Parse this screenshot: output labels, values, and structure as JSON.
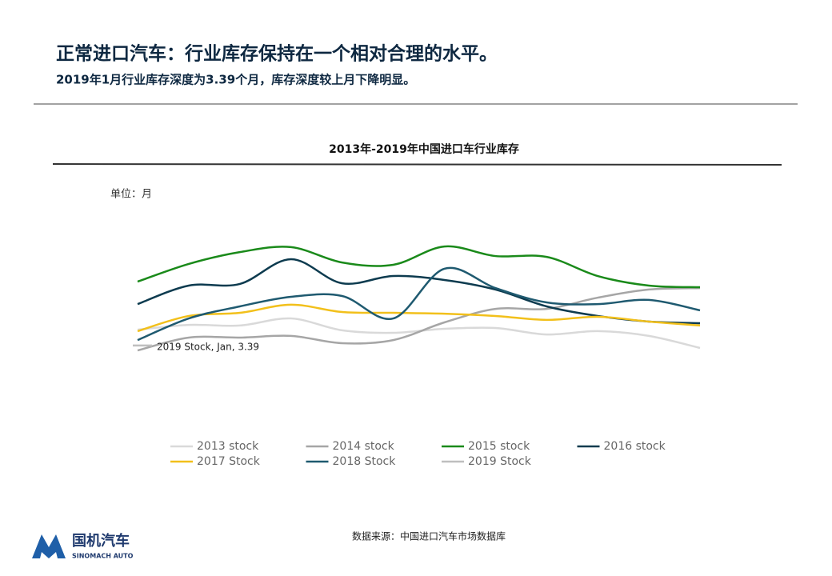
{
  "header": {
    "title": "正常进口汽车：行业库存保持在一个相对合理的水平。",
    "subtitle": "2019年1月行业库存深度为3.39个月，库存深度较上月下降明显。"
  },
  "chart_data": {
    "type": "line",
    "title": "2013年-2019年中国进口车行业库存",
    "unit_label": "单位：月",
    "categories": [
      null,
      null,
      null,
      null,
      null,
      null,
      null,
      null,
      null,
      null,
      null,
      null
    ],
    "ylim": [
      0,
      9
    ],
    "annotation": "2019 Stock, Jan, 3.39",
    "series": [
      {
        "name": "2013 stock",
        "color": "#d9d9d9",
        "values": [
          4.15,
          4.38,
          4.35,
          4.69,
          4.12,
          4.0,
          4.19,
          4.23,
          3.92,
          4.08,
          3.85,
          3.27
        ]
      },
      {
        "name": "2014 stock",
        "color": "#a6a6a6",
        "values": [
          3.15,
          3.77,
          3.77,
          3.85,
          3.5,
          3.65,
          4.5,
          5.15,
          5.15,
          5.69,
          6.08,
          6.15
        ]
      },
      {
        "name": "2015 stock",
        "color": "#1a8a1a",
        "values": [
          6.46,
          7.31,
          7.88,
          8.12,
          7.38,
          7.27,
          8.15,
          7.69,
          7.65,
          6.73,
          6.27,
          6.19
        ]
      },
      {
        "name": "2016 stock",
        "color": "#0d3b4f",
        "values": [
          5.38,
          6.27,
          6.35,
          7.54,
          6.38,
          6.73,
          6.54,
          6.08,
          5.27,
          4.81,
          4.54,
          4.46
        ]
      },
      {
        "name": "2017 Stock",
        "color": "#f2c01b",
        "values": [
          4.08,
          4.81,
          4.96,
          5.35,
          5.0,
          4.96,
          4.92,
          4.81,
          4.62,
          4.77,
          4.54,
          4.35
        ]
      },
      {
        "name": "2018 Stock",
        "color": "#1f5a70",
        "values": [
          3.65,
          4.69,
          5.27,
          5.73,
          5.77,
          4.69,
          7.08,
          6.15,
          5.46,
          5.38,
          5.58,
          5.08
        ]
      },
      {
        "name": "2019 Stock",
        "color": "#bfbfbf",
        "values": [
          3.39,
          null,
          null,
          null,
          null,
          null,
          null,
          null,
          null,
          null,
          null,
          null
        ]
      }
    ]
  },
  "footer": {
    "source": "数据来源：中国进口汽车市场数据库",
    "logo_cn": "国机汽车",
    "logo_en": "SINOMACH AUTO"
  }
}
